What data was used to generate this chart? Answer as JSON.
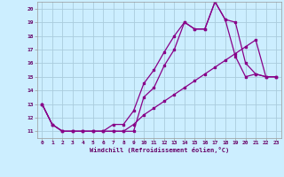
{
  "xlabel": "Windchill (Refroidissement éolien,°C)",
  "bg_color": "#cceeff",
  "grid_color": "#aaccdd",
  "line_color": "#880088",
  "xlim": [
    -0.5,
    23.5
  ],
  "ylim": [
    10.5,
    20.5
  ],
  "yticks": [
    11,
    12,
    13,
    14,
    15,
    16,
    17,
    18,
    19,
    20
  ],
  "xticks": [
    0,
    1,
    2,
    3,
    4,
    5,
    6,
    7,
    8,
    9,
    10,
    11,
    12,
    13,
    14,
    15,
    16,
    17,
    18,
    19,
    20,
    21,
    22,
    23
  ],
  "line1_x": [
    0,
    1,
    2,
    3,
    4,
    5,
    6,
    7,
    8,
    9,
    10,
    11,
    12,
    13,
    14,
    15,
    16,
    17,
    18,
    19,
    20,
    21,
    22,
    23
  ],
  "line1_y": [
    13,
    11.5,
    11,
    11,
    11,
    11,
    11,
    11,
    11,
    11,
    13.5,
    14.2,
    15.8,
    17.0,
    19.0,
    18.5,
    18.5,
    20.5,
    19.2,
    19.0,
    16.0,
    15.2,
    15,
    15
  ],
  "line2_x": [
    0,
    1,
    2,
    3,
    4,
    5,
    6,
    7,
    8,
    9,
    10,
    11,
    12,
    13,
    14,
    15,
    16,
    17,
    18,
    19,
    20,
    21,
    22,
    23
  ],
  "line2_y": [
    13,
    11.5,
    11,
    11,
    11,
    11,
    11,
    11.5,
    11.5,
    12.5,
    14.5,
    15.5,
    16.8,
    18.0,
    19.0,
    18.5,
    18.5,
    20.5,
    19.2,
    16.5,
    15.0,
    15.2,
    15,
    15
  ],
  "line3_x": [
    0,
    1,
    2,
    3,
    4,
    5,
    6,
    7,
    8,
    9,
    10,
    11,
    12,
    13,
    14,
    15,
    16,
    17,
    18,
    19,
    20,
    21,
    22,
    23
  ],
  "line3_y": [
    13,
    11.5,
    11,
    11,
    11,
    11,
    11,
    11,
    11,
    11.5,
    12.2,
    12.7,
    13.2,
    13.7,
    14.2,
    14.7,
    15.2,
    15.7,
    16.2,
    16.7,
    17.2,
    17.7,
    15,
    15
  ]
}
